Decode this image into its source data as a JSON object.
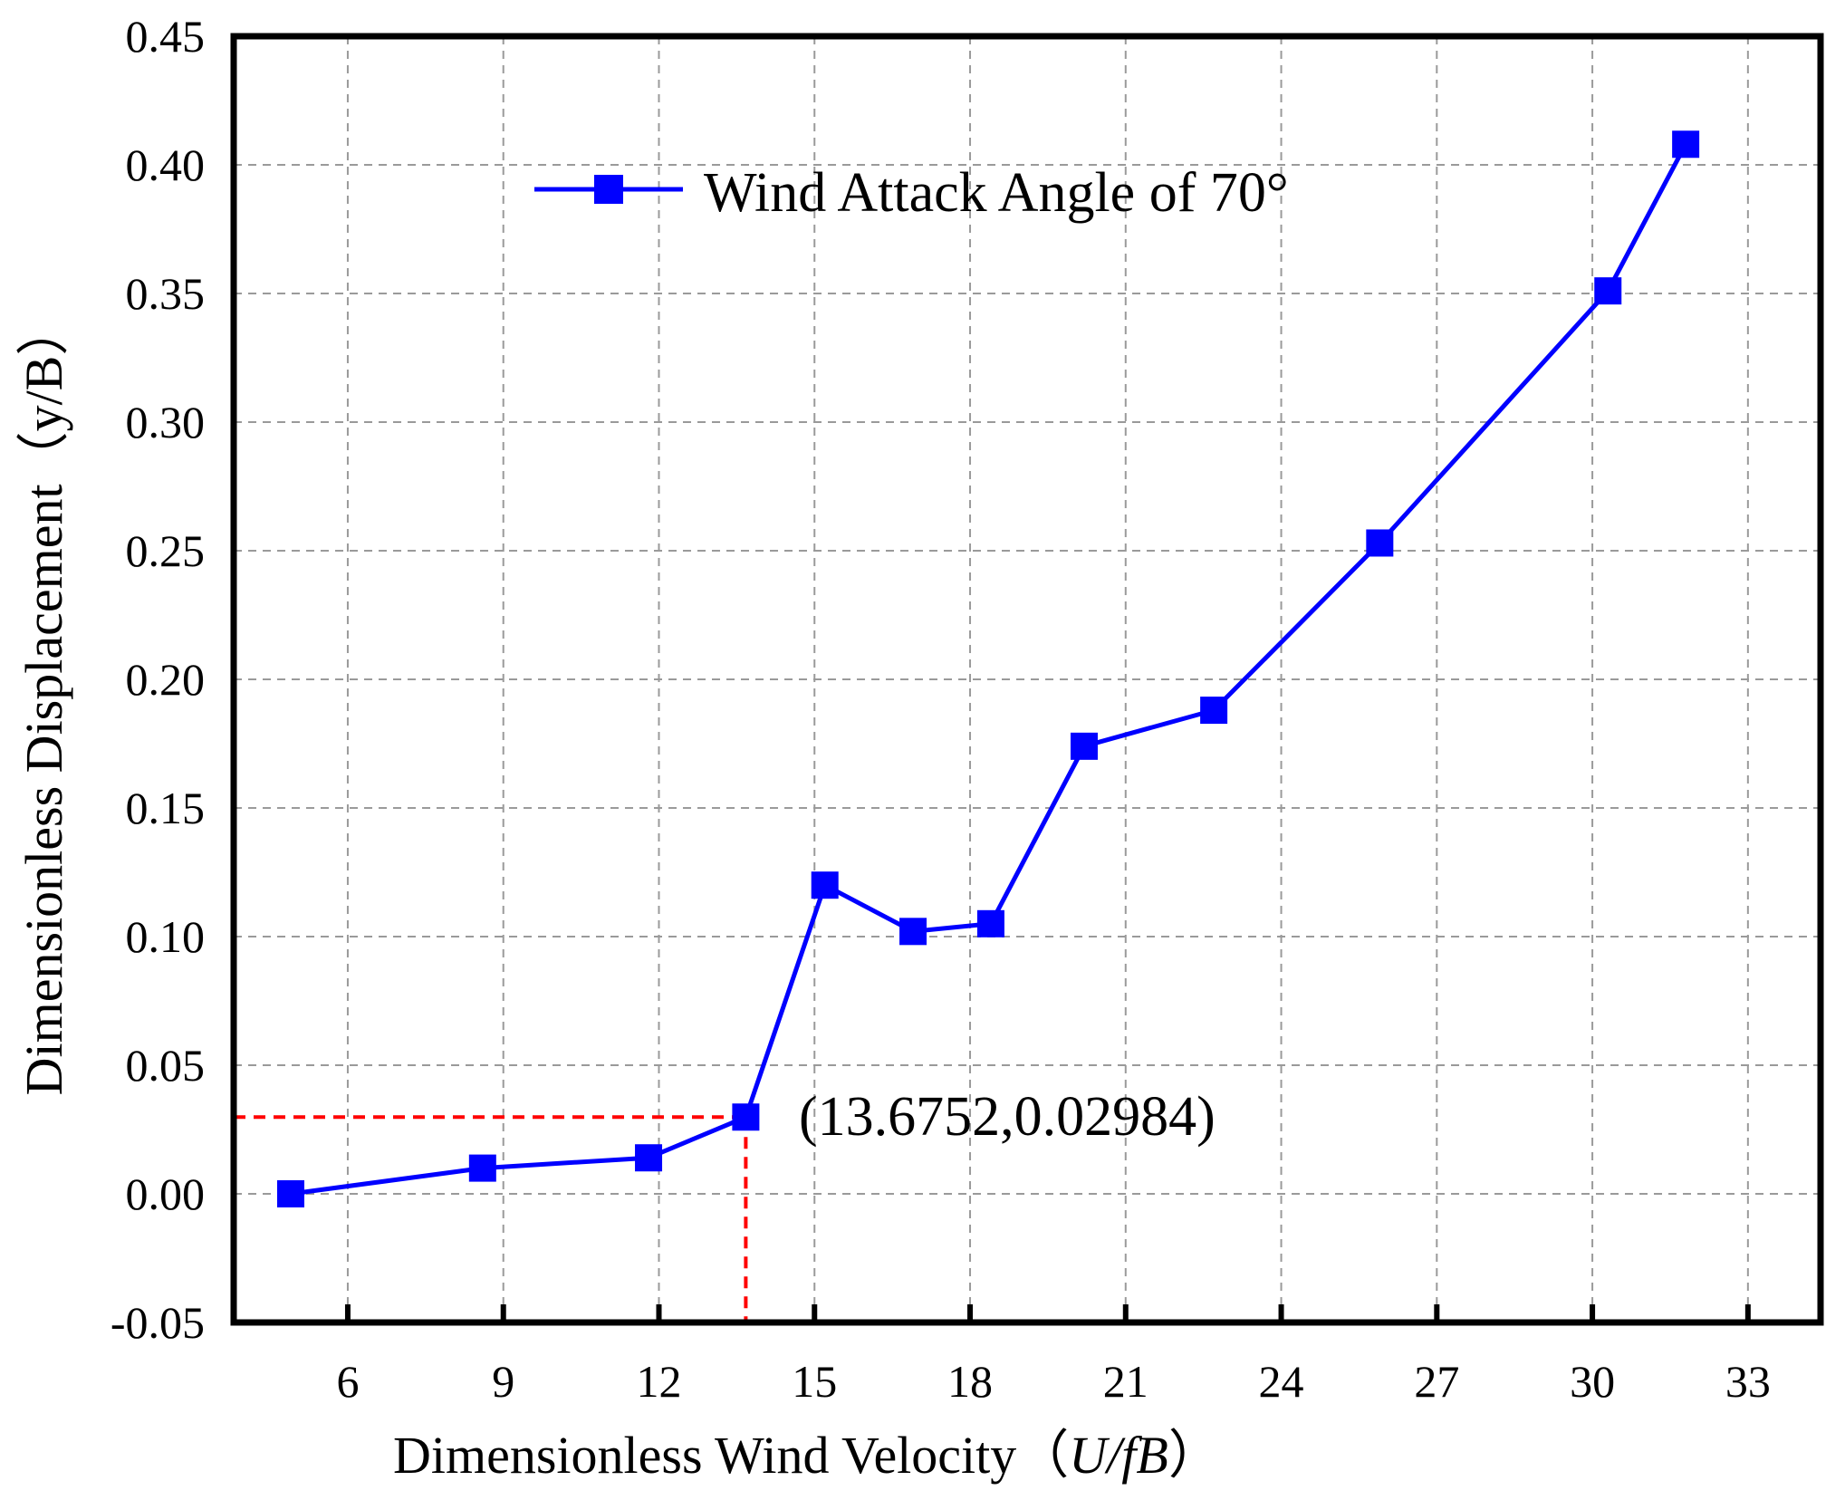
{
  "chart_data": {
    "type": "line",
    "title": "",
    "xlabel": "Dimensionless Wind Velocity（U/fB）",
    "xlabel_parts": [
      "Dimensionless Wind Velocity（",
      "U/fB",
      "）"
    ],
    "ylabel": "Dimensionless Displacement（y/B）",
    "xlim": [
      3.8,
      34.4
    ],
    "ylim": [
      -0.05,
      0.45
    ],
    "xticks": [
      6,
      9,
      12,
      15,
      18,
      21,
      24,
      27,
      30,
      33
    ],
    "xtick_labels": [
      "6",
      "9",
      "12",
      "15",
      "18",
      "21",
      "24",
      "27",
      "30",
      "33"
    ],
    "yticks": [
      -0.05,
      0.0,
      0.05,
      0.1,
      0.15,
      0.2,
      0.25,
      0.3,
      0.35,
      0.4,
      0.45
    ],
    "ytick_labels": [
      "-0.05",
      "0.00",
      "0.05",
      "0.10",
      "0.15",
      "0.20",
      "0.25",
      "0.30",
      "0.35",
      "0.40",
      "0.45"
    ],
    "grid": true,
    "legend_position": "top-center",
    "series": [
      {
        "name": "Wind Attack Angle of 70°",
        "color": "#0000ff",
        "marker": "square",
        "x": [
          4.9,
          8.6,
          11.8,
          13.6752,
          15.2,
          16.9,
          18.4,
          20.2,
          22.7,
          25.9,
          30.3,
          31.8
        ],
        "y": [
          0.0,
          0.01,
          0.014,
          0.02984,
          0.12,
          0.102,
          0.105,
          0.174,
          0.188,
          0.253,
          0.351,
          0.408
        ]
      }
    ],
    "annotations": [
      {
        "text": "(13.6752,0.02984)",
        "point": [
          13.6752,
          0.02984
        ],
        "color": "#ff0000",
        "style": "dashed-guides"
      }
    ]
  }
}
